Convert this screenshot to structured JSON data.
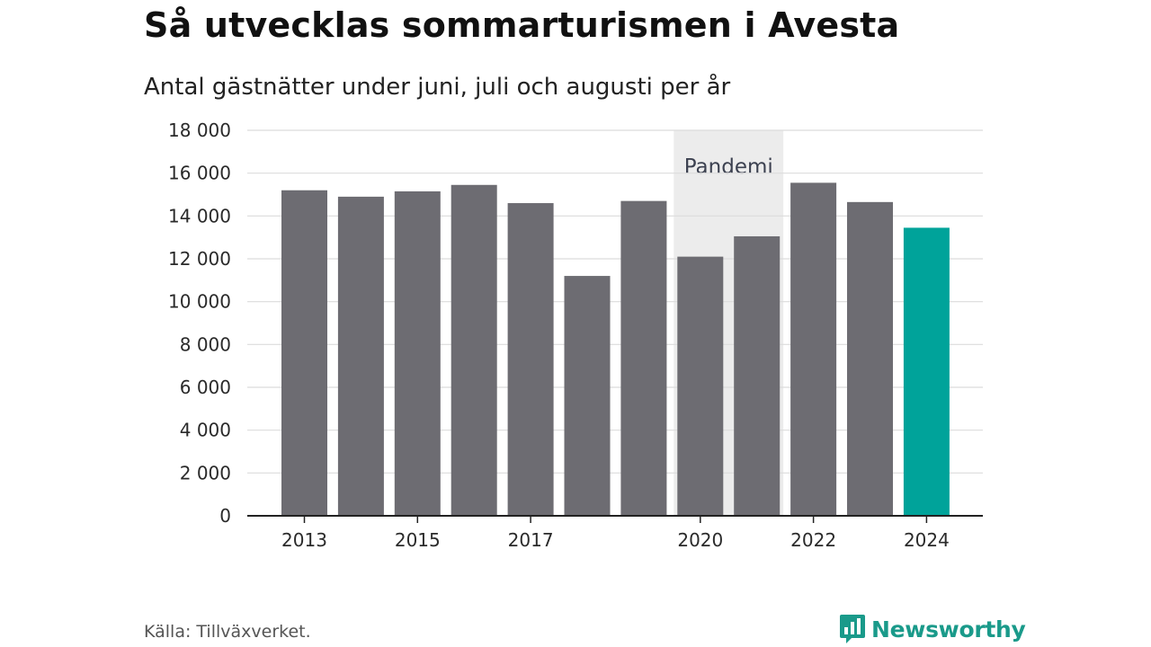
{
  "title": "Så utvecklas sommarturismen i Avesta",
  "subtitle": "Antal gästnätter under juni, juli och augusti per år",
  "source": "Källa: Tillväxverket.",
  "brand": {
    "name": "Newsworthy",
    "icon": "bar-chart-logo-icon",
    "color": "#1a9a8a"
  },
  "chart_data": {
    "type": "bar",
    "title": "Så utvecklas sommarturismen i Avesta",
    "subtitle": "Antal gästnätter under juni, juli och augusti per år",
    "categories": [
      "2013",
      "2014",
      "2015",
      "2016",
      "2017",
      "2018",
      "2019",
      "2020",
      "2021",
      "2022",
      "2023",
      "2024"
    ],
    "x_tick_labels": [
      "2013",
      "",
      "2015",
      "",
      "2017",
      "",
      "",
      "2020",
      "",
      "2022",
      "",
      "2024"
    ],
    "values": [
      15200,
      14900,
      15150,
      15450,
      14600,
      11200,
      14700,
      12100,
      13050,
      15550,
      14650,
      13450
    ],
    "ylim": [
      0,
      18000
    ],
    "y_ticks": [
      0,
      2000,
      4000,
      6000,
      8000,
      10000,
      12000,
      14000,
      16000,
      18000
    ],
    "y_tick_labels": [
      "0",
      "2 000",
      "4 000",
      "6 000",
      "8 000",
      "10 000",
      "12 000",
      "14 000",
      "16 000",
      "18 000"
    ],
    "grid": true,
    "colors": {
      "default": "#6d6c72",
      "highlight": "#00a39a",
      "annotation_band": "#ececec"
    },
    "highlight_category": "2024",
    "annotation": {
      "label": "Pandemi",
      "from": "2020",
      "to": "2021"
    }
  }
}
